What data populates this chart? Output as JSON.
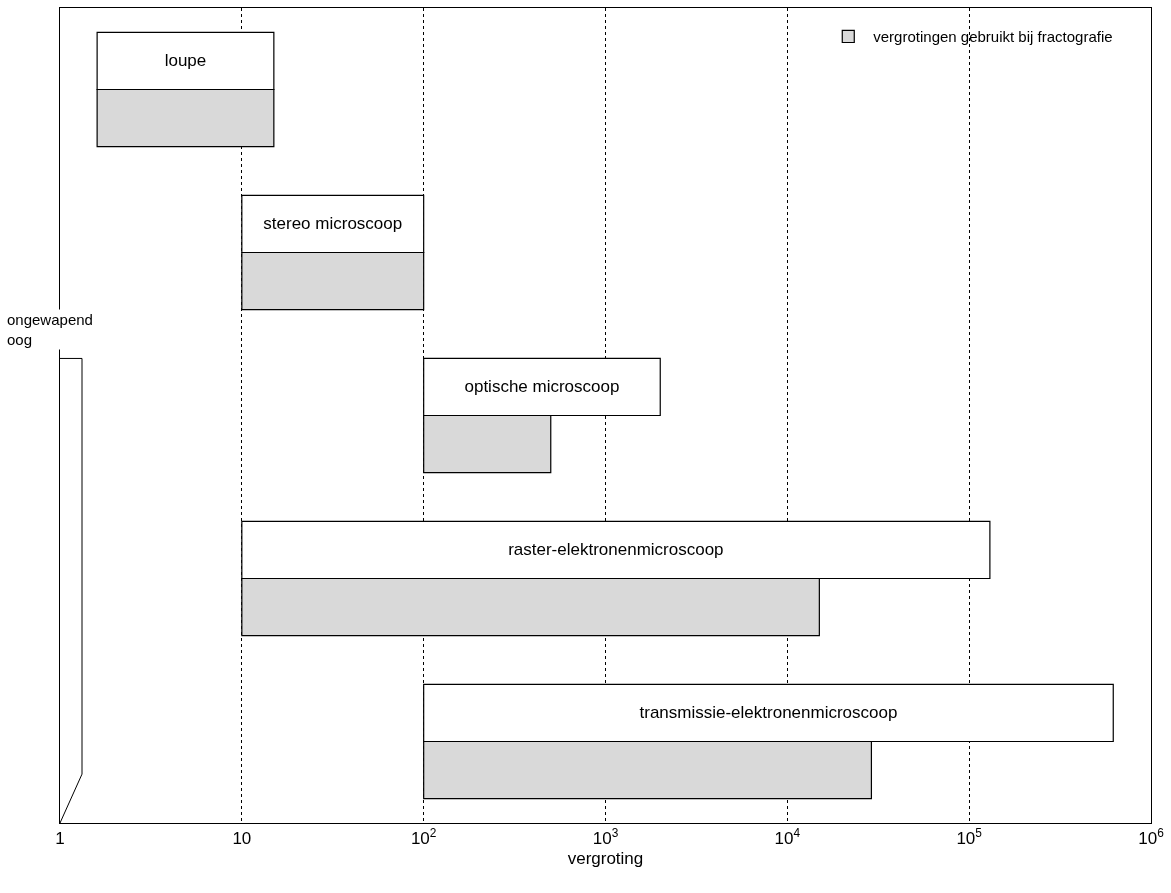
{
  "chart_data": {
    "type": "bar",
    "orientation": "horizontal",
    "log": "x",
    "xlabel": "vergroting",
    "categories": [
      "loupe",
      "stereo microscoop",
      "optische microscoop",
      "raster-elektronenmicroscoop",
      "transmissie-elektronenmicroscoop"
    ],
    "series": [
      {
        "color": "#ffffff",
        "base": [
          1.6,
          10,
          100,
          10,
          100
        ],
        "values": [
          13.4,
          90,
          1900,
          129990,
          619900
        ]
      },
      {
        "name": "vergrotingen gebruikt bij fractografie",
        "color": "#d9d9d9",
        "base": [
          1.6,
          10,
          100,
          10,
          100
        ],
        "values": [
          13.4,
          90,
          400,
          14990,
          28900
        ]
      }
    ],
    "xlim": [
      1,
      1000000
    ],
    "xticks": [
      1,
      10,
      {
        "value": 100,
        "label": "10$^{2}$"
      },
      {
        "value": 1000,
        "label": "10$^{3}$"
      },
      {
        "value": 10000,
        "label": "10$^{4}$"
      },
      {
        "value": 100000,
        "label": "10$^{5}$"
      },
      {
        "value": 1000000,
        "label": "10$^{6}$"
      }
    ],
    "ref_lines": [
      {
        "axis": "x",
        "value": 1,
        "label": "ongewapend oog"
      }
    ],
    "grid": "x",
    "legend": "top right",
    "tick_labels": "x"
  }
}
